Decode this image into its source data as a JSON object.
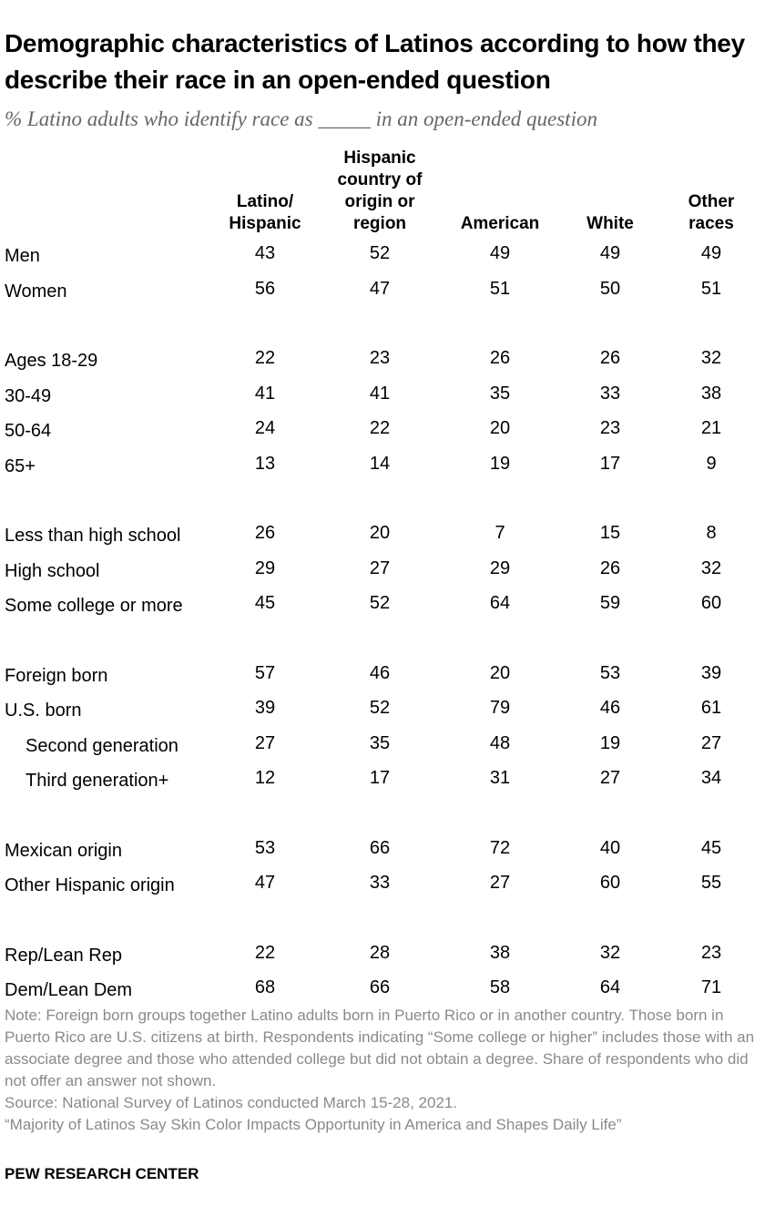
{
  "title": "Demographic characteristics of Latinos according to how they describe their race in an open-ended question",
  "subtitle": "% Latino adults who identify race as _____ in an open-ended question",
  "chart_data": {
    "type": "table",
    "columns": [
      "Latino/ Hispanic",
      "Hispanic country of origin or region",
      "American",
      "White",
      "Other races"
    ],
    "groups": [
      {
        "rows": [
          {
            "label": "Men",
            "values": [
              43,
              52,
              49,
              49,
              49
            ]
          },
          {
            "label": "Women",
            "values": [
              56,
              47,
              51,
              50,
              51
            ]
          }
        ]
      },
      {
        "rows": [
          {
            "label": "Ages 18-29",
            "values": [
              22,
              23,
              26,
              26,
              32
            ]
          },
          {
            "label": "30-49",
            "values": [
              41,
              41,
              35,
              33,
              38
            ]
          },
          {
            "label": "50-64",
            "values": [
              24,
              22,
              20,
              23,
              21
            ]
          },
          {
            "label": "65+",
            "values": [
              13,
              14,
              19,
              17,
              9
            ]
          }
        ]
      },
      {
        "rows": [
          {
            "label": "Less than high school",
            "values": [
              26,
              20,
              7,
              15,
              8
            ]
          },
          {
            "label": "High school",
            "values": [
              29,
              27,
              29,
              26,
              32
            ]
          },
          {
            "label": "Some college or more",
            "values": [
              45,
              52,
              64,
              59,
              60
            ]
          }
        ]
      },
      {
        "rows": [
          {
            "label": "Foreign born",
            "values": [
              57,
              46,
              20,
              53,
              39
            ]
          },
          {
            "label": "U.S. born",
            "values": [
              39,
              52,
              79,
              46,
              61
            ]
          },
          {
            "label": "Second generation",
            "values": [
              27,
              35,
              48,
              19,
              27
            ],
            "indent": true
          },
          {
            "label": "Third generation+",
            "values": [
              12,
              17,
              31,
              27,
              34
            ],
            "indent": true
          }
        ]
      },
      {
        "rows": [
          {
            "label": "Mexican origin",
            "values": [
              53,
              66,
              72,
              40,
              45
            ]
          },
          {
            "label": "Other Hispanic origin",
            "values": [
              47,
              33,
              27,
              60,
              55
            ]
          }
        ]
      },
      {
        "rows": [
          {
            "label": "Rep/Lean Rep",
            "values": [
              22,
              28,
              38,
              32,
              23
            ]
          },
          {
            "label": "Dem/Lean Dem",
            "values": [
              68,
              66,
              58,
              64,
              71
            ]
          }
        ]
      }
    ]
  },
  "notes": [
    "Note: Foreign born groups together Latino adults born in Puerto Rico or in another country. Those born in Puerto Rico are U.S. citizens at birth. Respondents indicating “Some college or higher” includes those with an associate degree and those who attended college but did not obtain a degree. Share of respondents who did not offer an answer not shown.",
    "Source: National Survey of Latinos conducted March 15-28, 2021.",
    "“Majority of Latinos Say Skin Color Impacts Opportunity in America and Shapes Daily Life”"
  ],
  "brand": "PEW RESEARCH CENTER"
}
